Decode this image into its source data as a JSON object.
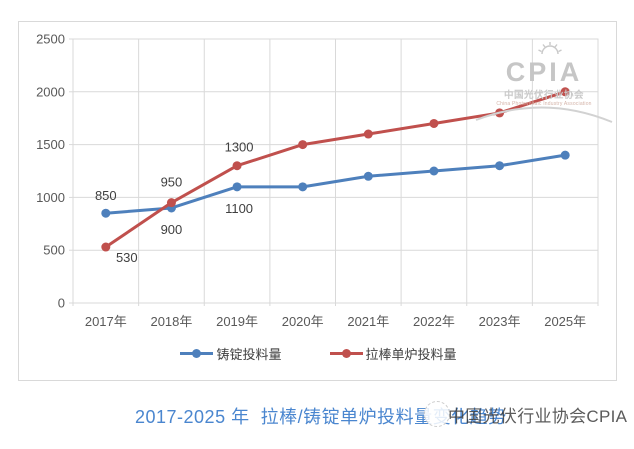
{
  "chart_data": {
    "type": "line",
    "categories": [
      "2017年",
      "2018年",
      "2019年",
      "2020年",
      "2021年",
      "2022年",
      "2023年",
      "2025年"
    ],
    "y_ticks": [
      0,
      500,
      1000,
      1500,
      2000,
      2500
    ],
    "ylim": [
      0,
      2500
    ],
    "grid": true,
    "legend_position": "bottom",
    "series": [
      {
        "name": "铸锭投料量",
        "color": "#4e80bc",
        "values": [
          850,
          900,
          1100,
          1100,
          1200,
          1250,
          1300,
          1400
        ],
        "point_labels": [
          {
            "index": 0,
            "text": "850",
            "dx": 0,
            "dy": -13
          },
          {
            "index": 1,
            "text": "900",
            "dx": 0,
            "dy": 26
          },
          {
            "index": 2,
            "text": "1100",
            "dx": 2,
            "dy": 26
          }
        ]
      },
      {
        "name": "拉棒单炉投料量",
        "color": "#c0504d",
        "values": [
          530,
          950,
          1300,
          1500,
          1600,
          1700,
          1800,
          2000
        ],
        "point_labels": [
          {
            "index": 0,
            "text": "530",
            "dx": 21,
            "dy": 15
          },
          {
            "index": 1,
            "text": "950",
            "dx": 0,
            "dy": -16
          },
          {
            "index": 2,
            "text": "1300",
            "dx": 2,
            "dy": -14
          }
        ]
      }
    ]
  },
  "logo": {
    "word": "CPIA",
    "cn": "中国光伏行业协会",
    "en": "China Photovoltaic Industry Association"
  },
  "footer": {
    "title": "2017-2025 年  拉棒/铸锭单炉投料量变化趋势",
    "watermark": "中国光伏行业协会CPIA"
  },
  "colors": {
    "gridline": "#d9d9d9",
    "axis_label": "#595959",
    "data_label": "#404040",
    "title_blue": "#4a86cf",
    "watermark_gray": "#c6c6c6"
  }
}
